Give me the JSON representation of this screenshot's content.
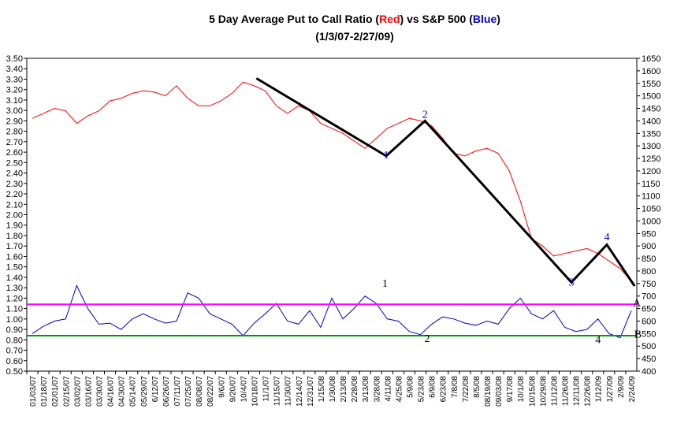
{
  "chart_data": {
    "type": "line",
    "title": {
      "prefix": "5 Day Average Put to Call Ratio (",
      "red_word": "Red",
      "middle": ") vs S&P 500 (",
      "blue_word": "Blue",
      "suffix": ")"
    },
    "subtitle": "(1/3/07-2/27/09)",
    "left_axis": {
      "ylim": [
        0.5,
        3.5
      ],
      "ticks": [
        "0.50",
        "0.60",
        "0.70",
        "0.80",
        "0.90",
        "1.00",
        "1.10",
        "1.20",
        "1.30",
        "1.40",
        "1.50",
        "1.60",
        "1.70",
        "1.80",
        "1.90",
        "2.00",
        "2.10",
        "2.20",
        "2.30",
        "2.40",
        "2.50",
        "2.60",
        "2.70",
        "2.80",
        "2.90",
        "3.00",
        "3.10",
        "3.20",
        "3.30",
        "3.40",
        "3.50"
      ]
    },
    "right_axis": {
      "ylim": [
        400,
        1650
      ],
      "ticks": [
        "400",
        "450",
        "500",
        "550",
        "600",
        "650",
        "700",
        "750",
        "800",
        "850",
        "900",
        "950",
        "1000",
        "1050",
        "1100",
        "1150",
        "1200",
        "1250",
        "1300",
        "1350",
        "1400",
        "1450",
        "1500",
        "1550",
        "1600",
        "1650"
      ]
    },
    "x_tick_labels": [
      "01/03/07",
      "01/18/07",
      "02/01/07",
      "02/15/07",
      "03/02/07",
      "03/16/07",
      "03/30/07",
      "04/16/07",
      "04/30/07",
      "05/14/07",
      "05/29/07",
      "6/12/07",
      "06/26/07",
      "07/11/07",
      "07/25/07",
      "08/08/07",
      "08/22/07",
      "9/6/07",
      "9/20/07",
      "10/4/07",
      "10/18/07",
      "11/1/07",
      "11/15/07",
      "11/30/07",
      "12/14/07",
      "12/31/07",
      "1/15/08",
      "1/30/08",
      "2/13/08",
      "2/28/08",
      "3/13/08",
      "3/28/08",
      "4/11/08",
      "4/25/08",
      "5/9/08",
      "5/23/08",
      "6/9/08",
      "6/23/08",
      "7/8/08",
      "7/22/08",
      "8/5/08",
      "08/19/08",
      "09/03/08",
      "9/17/08",
      "10/1/08",
      "10/15/08",
      "10/29/08",
      "11/12/08",
      "11/26/08",
      "12/11/08",
      "12/26/08",
      "1/12/09",
      "1/27/09",
      "2/9/09",
      "2/24/09"
    ],
    "series": [
      {
        "name": "Red",
        "axis": "right",
        "color": "#ff0000",
        "points": [
          [
            0,
            1410
          ],
          [
            1,
            1430
          ],
          [
            2,
            1450
          ],
          [
            3,
            1440
          ],
          [
            4,
            1390
          ],
          [
            5,
            1420
          ],
          [
            6,
            1440
          ],
          [
            7,
            1480
          ],
          [
            8,
            1490
          ],
          [
            9,
            1510
          ],
          [
            10,
            1520
          ],
          [
            11,
            1515
          ],
          [
            12,
            1500
          ],
          [
            13,
            1540
          ],
          [
            14,
            1490
          ],
          [
            15,
            1460
          ],
          [
            16,
            1460
          ],
          [
            17,
            1480
          ],
          [
            18,
            1510
          ],
          [
            19,
            1555
          ],
          [
            20,
            1540
          ],
          [
            21,
            1520
          ],
          [
            22,
            1460
          ],
          [
            23,
            1430
          ],
          [
            24,
            1460
          ],
          [
            25,
            1440
          ],
          [
            26,
            1390
          ],
          [
            27,
            1370
          ],
          [
            28,
            1350
          ],
          [
            29,
            1320
          ],
          [
            30,
            1290
          ],
          [
            31,
            1330
          ],
          [
            32,
            1370
          ],
          [
            33,
            1390
          ],
          [
            34,
            1410
          ],
          [
            35,
            1400
          ],
          [
            36,
            1380
          ],
          [
            37,
            1330
          ],
          [
            38,
            1270
          ],
          [
            39,
            1260
          ],
          [
            40,
            1280
          ],
          [
            41,
            1290
          ],
          [
            42,
            1270
          ],
          [
            43,
            1200
          ],
          [
            44,
            1080
          ],
          [
            45,
            930
          ],
          [
            46,
            900
          ],
          [
            47,
            860
          ],
          [
            48,
            870
          ],
          [
            49,
            880
          ],
          [
            50,
            890
          ],
          [
            51,
            870
          ],
          [
            52,
            840
          ],
          [
            53,
            810
          ],
          [
            54,
            760
          ]
        ]
      },
      {
        "name": "Blue",
        "axis": "left",
        "color": "#0000cc",
        "points": [
          [
            0,
            0.86
          ],
          [
            1,
            0.93
          ],
          [
            2,
            0.98
          ],
          [
            3,
            1.0
          ],
          [
            4,
            1.32
          ],
          [
            5,
            1.1
          ],
          [
            6,
            0.95
          ],
          [
            7,
            0.96
          ],
          [
            8,
            0.9
          ],
          [
            9,
            1.0
          ],
          [
            10,
            1.05
          ],
          [
            11,
            1.0
          ],
          [
            12,
            0.96
          ],
          [
            13,
            0.98
          ],
          [
            14,
            1.25
          ],
          [
            15,
            1.2
          ],
          [
            16,
            1.05
          ],
          [
            17,
            1.0
          ],
          [
            18,
            0.95
          ],
          [
            19,
            0.84
          ],
          [
            20,
            0.96
          ],
          [
            21,
            1.05
          ],
          [
            22,
            1.15
          ],
          [
            23,
            0.98
          ],
          [
            24,
            0.95
          ],
          [
            25,
            1.08
          ],
          [
            26,
            0.92
          ],
          [
            27,
            1.2
          ],
          [
            28,
            1.0
          ],
          [
            29,
            1.1
          ],
          [
            30,
            1.22
          ],
          [
            31,
            1.15
          ],
          [
            32,
            1.0
          ],
          [
            33,
            0.98
          ],
          [
            34,
            0.88
          ],
          [
            35,
            0.85
          ],
          [
            36,
            0.95
          ],
          [
            37,
            1.02
          ],
          [
            38,
            1.0
          ],
          [
            39,
            0.96
          ],
          [
            40,
            0.94
          ],
          [
            41,
            0.98
          ],
          [
            42,
            0.95
          ],
          [
            43,
            1.1
          ],
          [
            44,
            1.2
          ],
          [
            45,
            1.05
          ],
          [
            46,
            1.0
          ],
          [
            47,
            1.08
          ],
          [
            48,
            0.92
          ],
          [
            49,
            0.88
          ],
          [
            50,
            0.9
          ],
          [
            51,
            1.0
          ],
          [
            52,
            0.86
          ],
          [
            53,
            0.82
          ],
          [
            54,
            1.08
          ]
        ]
      }
    ],
    "reference_lines": [
      {
        "value": 1.14,
        "color": "#ff00ff"
      },
      {
        "value": 0.84,
        "color": "#009900"
      }
    ],
    "wave_line": {
      "color": "#000000",
      "points": [
        [
          20.2,
          1570
        ],
        [
          31.9,
          1260
        ],
        [
          35.4,
          1400
        ],
        [
          48.6,
          755
        ],
        [
          51.8,
          905
        ],
        [
          54.3,
          740
        ]
      ]
    },
    "annotations": [
      {
        "text": "1",
        "x": 31.9,
        "axis": "right",
        "y": 1250,
        "color": "#0000cc"
      },
      {
        "text": "2",
        "x": 35.4,
        "axis": "right",
        "y": 1412,
        "color": "#0000cc"
      },
      {
        "text": "3",
        "x": 48.6,
        "axis": "right",
        "y": 742,
        "color": "#0000cc"
      },
      {
        "text": "4",
        "x": 51.8,
        "axis": "right",
        "y": 922,
        "color": "#0000cc"
      },
      {
        "text": "1",
        "x": 31.8,
        "axis": "left",
        "y": 1.31,
        "color": "#000000"
      },
      {
        "text": "2",
        "x": 35.6,
        "axis": "left",
        "y": 0.78,
        "color": "#000000"
      },
      {
        "text": "4",
        "x": 51.0,
        "axis": "left",
        "y": 0.77,
        "color": "#000000"
      },
      {
        "text": "A",
        "x": 54.5,
        "axis": "left",
        "y": 1.12,
        "color": "#000000"
      },
      {
        "text": "B",
        "x": 54.6,
        "axis": "left",
        "y": 0.82,
        "color": "#000000"
      }
    ],
    "grid": false,
    "legend": "none"
  }
}
